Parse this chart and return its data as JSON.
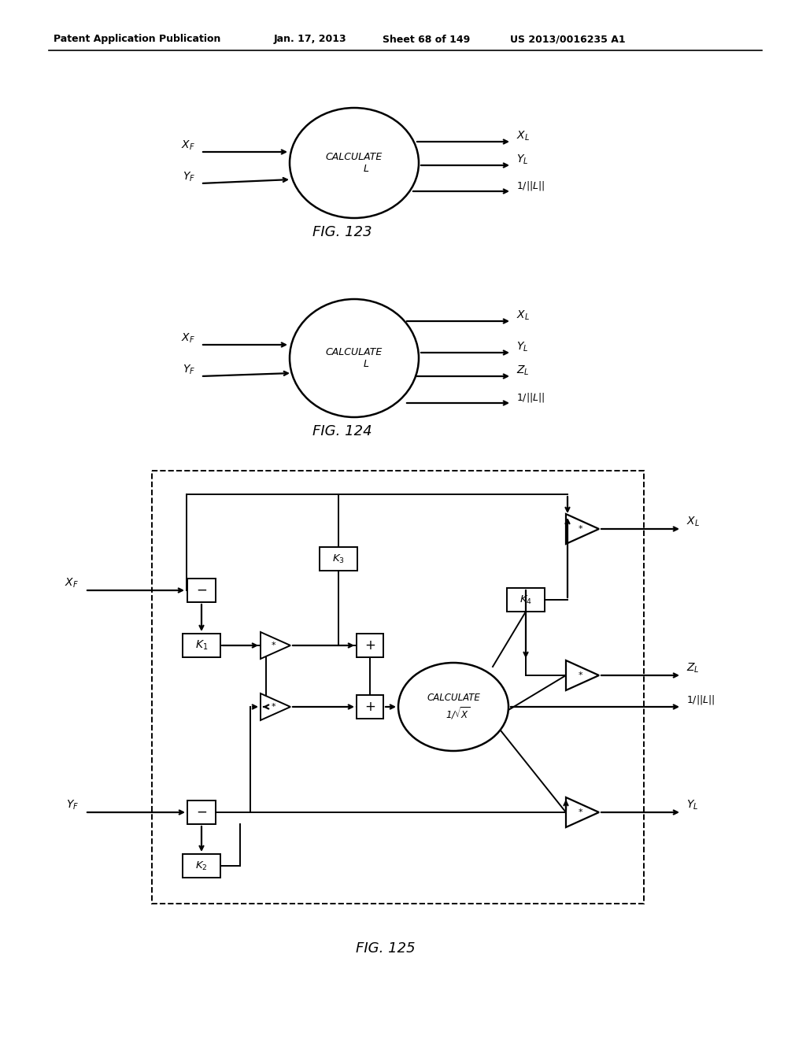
{
  "bg": "#ffffff",
  "lc": "#000000",
  "h1": "Patent Application Publication",
  "h2": "Jan. 17, 2013",
  "h3": "Sheet 68 of 149",
  "h4": "US 2013/0016235 A1",
  "fig123": "FIG. 123",
  "fig124": "FIG. 124",
  "fig125": "FIG. 125"
}
